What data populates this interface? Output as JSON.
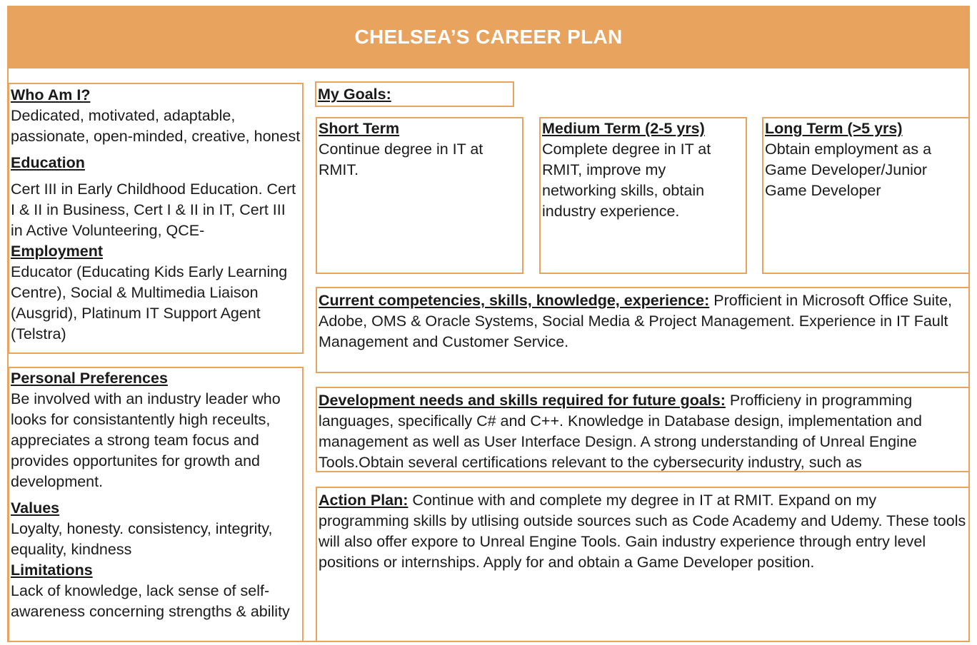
{
  "title": "CHELSEA’S CAREER PLAN",
  "colors": {
    "accent": "#e8a45e",
    "text": "#1a1a1a"
  },
  "left_top": {
    "who_heading": "Who Am I?",
    "who_text": "Dedicated, motivated, adaptable, passionate, open-minded, creative, honest",
    "education_heading": "Education",
    "education_text": "Cert III in Early Childhood Education. Cert I & II in Business, Cert I & II in IT, Cert III in Active Volunteering, QCE-",
    "employment_heading": "Employment",
    "employment_text": "Educator (Educating Kids Early Learning Centre), Social & Multimedia Liaison (Ausgrid), Platinum IT Support Agent (Telstra)"
  },
  "left_bottom": {
    "preferences_heading": "Personal Preferences",
    "preferences_text": "Be involved with an industry leader who looks for consistantently high receults, appreciates a strong team focus and provides opportunites for growth and development.",
    "values_heading": "Values",
    "values_text": "Loyalty, honesty. consistency, integrity, equality, kindness",
    "limitations_heading": "Limitations",
    "limitations_text": "Lack of knowledge, lack sense of self-awareness concerning strengths & ability"
  },
  "goals": {
    "heading": "My Goals:",
    "short": {
      "heading": "Short Term",
      "text": "Continue degree in IT at RMIT."
    },
    "medium": {
      "heading": "Medium Term (2-5 yrs) ",
      "text": "Complete degree in IT at RMIT, improve my networking skills, obtain industry experience."
    },
    "long": {
      "heading": "Long Term (>5 yrs) ",
      "text": "Obtain employment as a Game Developer/Junior Game Developer"
    }
  },
  "competencies": {
    "heading": "Current competencies, skills, knowledge, experience:",
    "text": " Profficient in Microsoft Office Suite, Adobe, OMS & Oracle Systems, Social Media & Project Management. Experience in IT Fault Management and Customer Service."
  },
  "development": {
    "heading": "Development needs and skills required for future goals:",
    "text": " Profficieny in programming languages, specifically C# and C++. Knowledge in Database design, implementation and management as well as User Interface Design. A strong understanding of Unreal Engine Tools.Obtain several certifications relevant to the cybersecurity industry, such as"
  },
  "action_plan": {
    "heading": "Action Plan:",
    "text": " Continue with and complete my degree in IT at RMIT. Expand on my programming skills by utlising outside sources such as Code Academy and Udemy. These tools will also offer expore to Unreal Engine Tools. Gain industry experience through entry level positions or internships. Apply for and obtain a Game Developer position."
  }
}
